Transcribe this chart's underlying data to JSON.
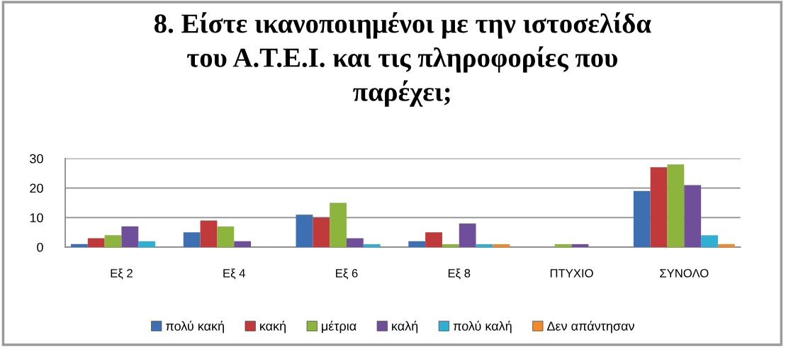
{
  "chart_data": {
    "type": "bar",
    "title": "8. Είστε ικανοποιημένοι με την ιστοσελίδα\nτου Α.Τ.Ε.Ι. και τις πληροφορίες που\nπαρέχει;",
    "categories": [
      "Εξ 2",
      "Εξ 4",
      "Εξ 6",
      "Εξ 8",
      "ΠΤΥΧΙΟ",
      "ΣΥΝΟΛΟ"
    ],
    "series": [
      {
        "name": "πολύ κακή",
        "color": "#3d70b2",
        "values": [
          1,
          5,
          11,
          2,
          0,
          19
        ]
      },
      {
        "name": "κακή",
        "color": "#c0393b",
        "values": [
          3,
          9,
          10,
          5,
          0,
          27
        ]
      },
      {
        "name": "μέτρια",
        "color": "#8db53e",
        "values": [
          4,
          7,
          15,
          1,
          1,
          28
        ]
      },
      {
        "name": "καλή",
        "color": "#6f4f9a",
        "values": [
          7,
          2,
          3,
          8,
          1,
          21
        ]
      },
      {
        "name": "πολύ καλή",
        "color": "#2fb0d2",
        "values": [
          2,
          0,
          1,
          1,
          0,
          4
        ]
      },
      {
        "name": "Δεν απάντησαν",
        "color": "#f08a2c",
        "values": [
          0,
          0,
          0,
          1,
          0,
          1
        ]
      }
    ],
    "ylim": [
      0,
      30
    ],
    "yticks": [
      0,
      10,
      20,
      30
    ],
    "grid": "y",
    "legend": "bottom"
  }
}
